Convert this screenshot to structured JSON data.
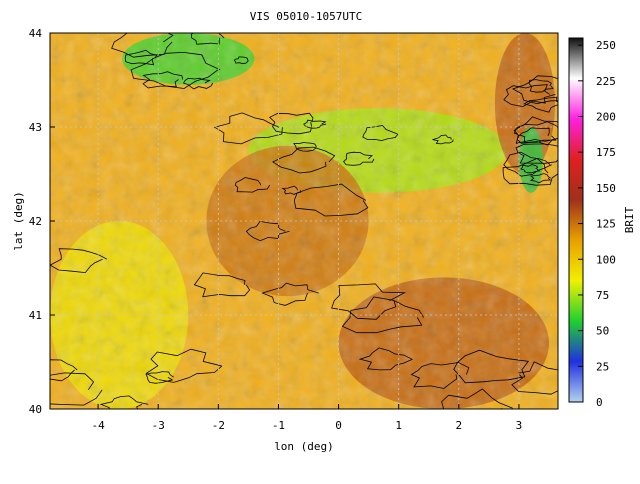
{
  "chart_data": {
    "type": "heatmap",
    "title": "VIS 05010-1057UTC",
    "xlabel": "lon (deg)",
    "ylabel": "lat (deg)",
    "xlim": [
      -4.8,
      3.65
    ],
    "ylim": [
      40,
      44
    ],
    "x_ticks": [
      -4,
      -3,
      -2,
      -1,
      0,
      1,
      2,
      3
    ],
    "y_ticks": [
      40,
      41,
      42,
      43,
      44
    ],
    "grid": "dashed",
    "colorbar": {
      "label": "BRIT",
      "range": [
        0,
        255
      ],
      "ticks": [
        0,
        25,
        50,
        75,
        100,
        125,
        150,
        175,
        200,
        225,
        250
      ],
      "colors": [
        "#b4d2f0",
        "#2030e0",
        "#20d030",
        "#f0f000",
        "#e8a000",
        "#a0301c",
        "#e02020",
        "#ff20e0",
        "#ffffff",
        "#101010"
      ]
    },
    "features": [
      {
        "name": "bright region north-west",
        "lon": [
          -3.6,
          -1.4
        ],
        "lat": [
          43.45,
          44.0
        ],
        "value": 60
      },
      {
        "name": "bright band",
        "lon": [
          -1.5,
          2.8
        ],
        "lat": [
          42.3,
          43.2
        ],
        "value": 75
      },
      {
        "name": "dark basin",
        "lon": [
          -2.2,
          0.5
        ],
        "lat": [
          41.2,
          42.8
        ],
        "value": 125
      },
      {
        "name": "dark south-east",
        "lon": [
          0.0,
          3.5
        ],
        "lat": [
          40.0,
          41.4
        ],
        "value": 130
      },
      {
        "name": "dark north-east",
        "lon": [
          2.6,
          3.6
        ],
        "lat": [
          42.5,
          44.0
        ],
        "value": 130
      },
      {
        "name": "bright strip east",
        "lon": [
          3.0,
          3.4
        ],
        "lat": [
          42.3,
          43.0
        ],
        "value": 55
      },
      {
        "name": "mid-level west",
        "lon": [
          -4.8,
          -2.5
        ],
        "lat": [
          40.0,
          42.0
        ],
        "value": 90
      }
    ]
  }
}
